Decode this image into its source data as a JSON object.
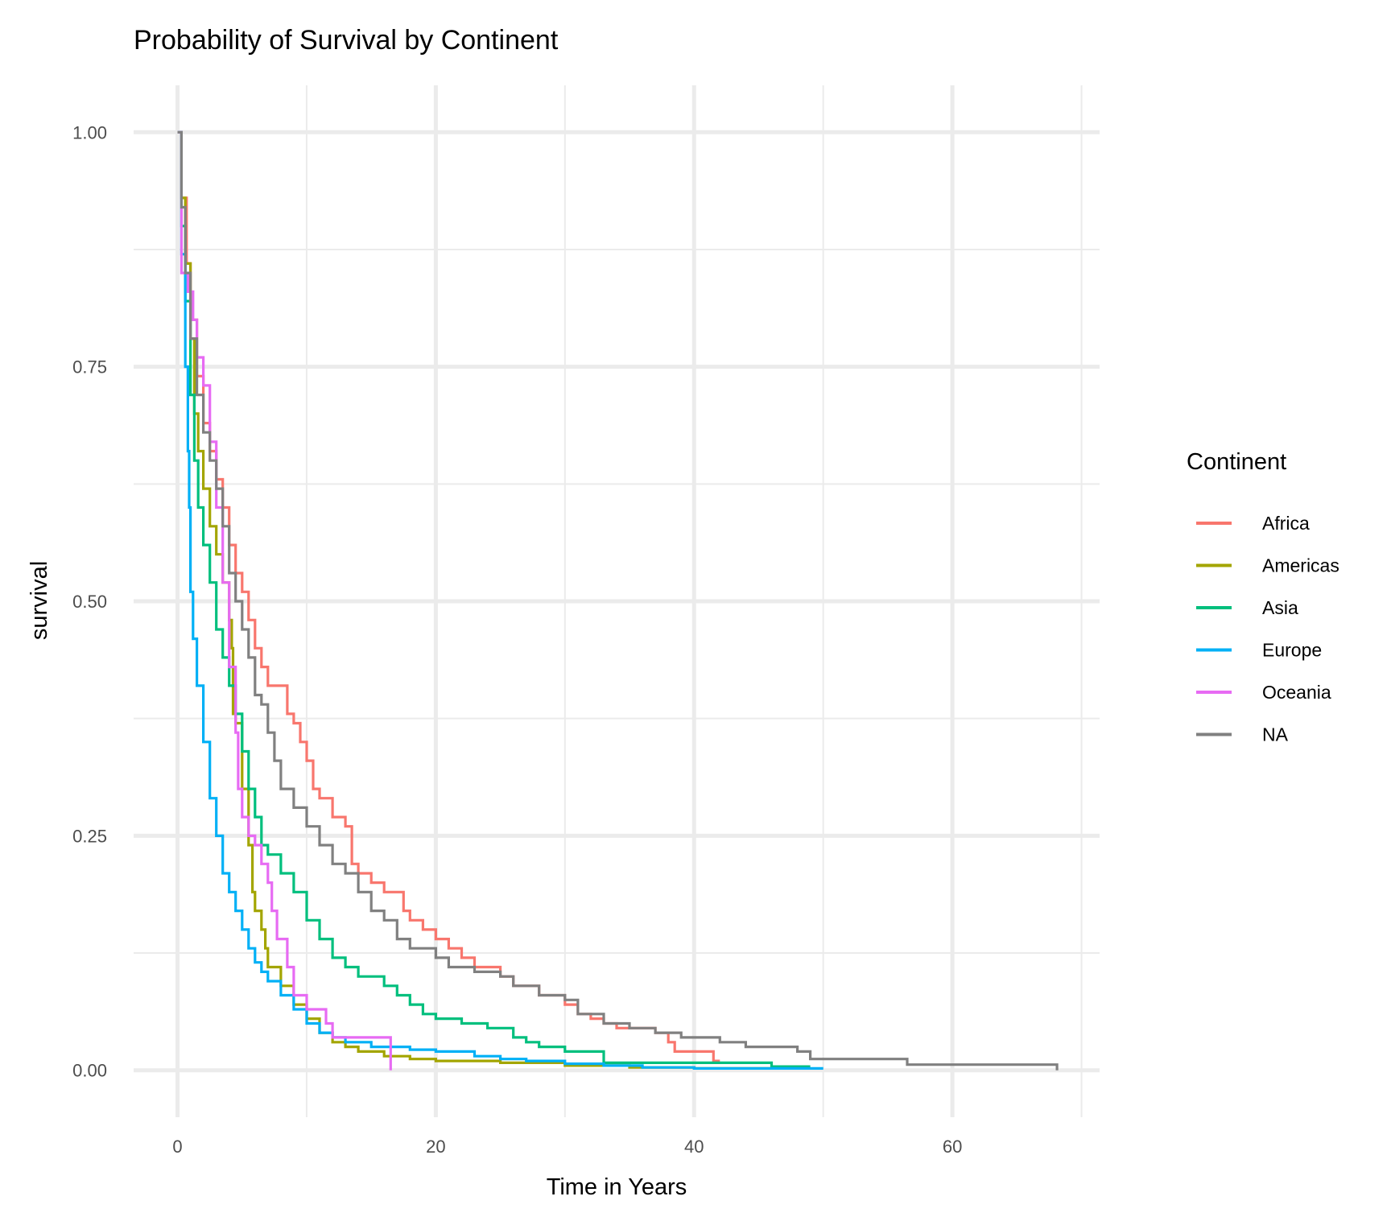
{
  "chart_data": {
    "type": "line",
    "title": "Probability of Survival by Continent",
    "xlabel": "Time in Years",
    "ylabel": "survival",
    "xlim": [
      -3.4,
      71.4
    ],
    "ylim": [
      -0.05,
      1.05
    ],
    "x_ticks": [
      0,
      20,
      40,
      60
    ],
    "x_tick_labels": [
      "0",
      "20",
      "40",
      "60"
    ],
    "x_minor_ticks": [
      10,
      30,
      50,
      70
    ],
    "y_ticks": [
      0,
      0.25,
      0.5,
      0.75,
      1.0
    ],
    "y_tick_labels": [
      "0.00",
      "0.25",
      "0.50",
      "0.75",
      "1.00"
    ],
    "y_minor_ticks": [
      0.125,
      0.375,
      0.625,
      0.875
    ],
    "grid": true,
    "legend": {
      "title": "Continent",
      "position": "right"
    },
    "series": [
      {
        "name": "Africa",
        "color": "#F8766D",
        "points": [
          [
            0,
            1.0
          ],
          [
            0.3,
            0.93
          ],
          [
            0.7,
            0.86
          ],
          [
            1.0,
            0.8
          ],
          [
            1.5,
            0.74
          ],
          [
            2.0,
            0.69
          ],
          [
            2.5,
            0.66
          ],
          [
            3.0,
            0.63
          ],
          [
            3.5,
            0.6
          ],
          [
            4.0,
            0.56
          ],
          [
            4.5,
            0.53
          ],
          [
            5.0,
            0.51
          ],
          [
            5.5,
            0.48
          ],
          [
            6.0,
            0.45
          ],
          [
            6.5,
            0.43
          ],
          [
            7.0,
            0.41
          ],
          [
            8.0,
            0.41
          ],
          [
            8.5,
            0.38
          ],
          [
            9.0,
            0.37
          ],
          [
            9.5,
            0.35
          ],
          [
            10.0,
            0.33
          ],
          [
            10.5,
            0.3
          ],
          [
            11.0,
            0.29
          ],
          [
            12.0,
            0.27
          ],
          [
            13.0,
            0.26
          ],
          [
            13.5,
            0.22
          ],
          [
            14.0,
            0.21
          ],
          [
            15.0,
            0.2
          ],
          [
            16.0,
            0.19
          ],
          [
            17.0,
            0.19
          ],
          [
            17.5,
            0.17
          ],
          [
            18.0,
            0.16
          ],
          [
            19.0,
            0.15
          ],
          [
            20.0,
            0.14
          ],
          [
            21.0,
            0.13
          ],
          [
            22.0,
            0.12
          ],
          [
            23.0,
            0.11
          ],
          [
            25.0,
            0.1
          ],
          [
            26.0,
            0.09
          ],
          [
            27.0,
            0.09
          ],
          [
            28.0,
            0.08
          ],
          [
            29.0,
            0.08
          ],
          [
            30.0,
            0.07
          ],
          [
            31.0,
            0.06
          ],
          [
            32.0,
            0.055
          ],
          [
            33.0,
            0.05
          ],
          [
            34.0,
            0.045
          ],
          [
            37.0,
            0.04
          ],
          [
            38.0,
            0.03
          ],
          [
            38.5,
            0.02
          ],
          [
            41.0,
            0.02
          ],
          [
            41.5,
            0.01
          ],
          [
            42.0,
            0.01
          ]
        ]
      },
      {
        "name": "Americas",
        "color": "#A3A500",
        "points": [
          [
            0,
            1.0
          ],
          [
            0.3,
            0.93
          ],
          [
            0.6,
            0.86
          ],
          [
            1.0,
            0.78
          ],
          [
            1.3,
            0.7
          ],
          [
            1.6,
            0.66
          ],
          [
            2.0,
            0.62
          ],
          [
            2.5,
            0.58
          ],
          [
            3.0,
            0.55
          ],
          [
            3.5,
            0.52
          ],
          [
            4.0,
            0.48
          ],
          [
            4.2,
            0.45
          ],
          [
            4.3,
            0.38
          ],
          [
            4.5,
            0.37
          ],
          [
            5.0,
            0.3
          ],
          [
            5.5,
            0.24
          ],
          [
            5.8,
            0.19
          ],
          [
            6.0,
            0.17
          ],
          [
            6.5,
            0.15
          ],
          [
            6.8,
            0.13
          ],
          [
            7.0,
            0.11
          ],
          [
            8.0,
            0.09
          ],
          [
            9.0,
            0.07
          ],
          [
            10.0,
            0.055
          ],
          [
            11.0,
            0.04
          ],
          [
            12.0,
            0.03
          ],
          [
            13.0,
            0.025
          ],
          [
            14.0,
            0.02
          ],
          [
            16.0,
            0.015
          ],
          [
            18.0,
            0.012
          ],
          [
            20.0,
            0.01
          ],
          [
            25.0,
            0.008
          ],
          [
            30.0,
            0.005
          ],
          [
            35.0,
            0.003
          ],
          [
            40.0,
            0.002
          ],
          [
            49.0,
            0.002
          ]
        ]
      },
      {
        "name": "Asia",
        "color": "#00BF7D",
        "points": [
          [
            0,
            1.0
          ],
          [
            0.3,
            0.9
          ],
          [
            0.6,
            0.82
          ],
          [
            1.0,
            0.72
          ],
          [
            1.3,
            0.65
          ],
          [
            1.6,
            0.6
          ],
          [
            2.0,
            0.56
          ],
          [
            2.5,
            0.52
          ],
          [
            3.0,
            0.47
          ],
          [
            3.5,
            0.44
          ],
          [
            4.0,
            0.41
          ],
          [
            4.5,
            0.38
          ],
          [
            5.0,
            0.34
          ],
          [
            5.5,
            0.3
          ],
          [
            6.0,
            0.27
          ],
          [
            6.5,
            0.24
          ],
          [
            7.0,
            0.23
          ],
          [
            8.0,
            0.21
          ],
          [
            9.0,
            0.19
          ],
          [
            10.0,
            0.16
          ],
          [
            11.0,
            0.14
          ],
          [
            12.0,
            0.12
          ],
          [
            13.0,
            0.11
          ],
          [
            14.0,
            0.1
          ],
          [
            15.0,
            0.1
          ],
          [
            16.0,
            0.09
          ],
          [
            17.0,
            0.08
          ],
          [
            18.0,
            0.07
          ],
          [
            19.0,
            0.06
          ],
          [
            20.0,
            0.055
          ],
          [
            22.0,
            0.05
          ],
          [
            24.0,
            0.045
          ],
          [
            26.0,
            0.035
          ],
          [
            27.0,
            0.03
          ],
          [
            28.0,
            0.025
          ],
          [
            30.0,
            0.02
          ],
          [
            32.0,
            0.02
          ],
          [
            33.0,
            0.008
          ],
          [
            38.0,
            0.008
          ],
          [
            45.0,
            0.008
          ],
          [
            46.0,
            0.004
          ],
          [
            49.0,
            0.004
          ]
        ]
      },
      {
        "name": "Europe",
        "color": "#00B0F6",
        "points": [
          [
            0,
            1.0
          ],
          [
            0.3,
            0.87
          ],
          [
            0.6,
            0.75
          ],
          [
            0.8,
            0.66
          ],
          [
            0.9,
            0.6
          ],
          [
            1.0,
            0.51
          ],
          [
            1.2,
            0.46
          ],
          [
            1.5,
            0.41
          ],
          [
            2.0,
            0.35
          ],
          [
            2.5,
            0.29
          ],
          [
            3.0,
            0.25
          ],
          [
            3.5,
            0.21
          ],
          [
            4.0,
            0.19
          ],
          [
            4.5,
            0.17
          ],
          [
            5.0,
            0.15
          ],
          [
            5.5,
            0.13
          ],
          [
            6.0,
            0.115
          ],
          [
            6.5,
            0.105
          ],
          [
            7.0,
            0.095
          ],
          [
            8.0,
            0.08
          ],
          [
            9.0,
            0.065
          ],
          [
            10.0,
            0.05
          ],
          [
            11.0,
            0.04
          ],
          [
            12.0,
            0.035
          ],
          [
            13.0,
            0.03
          ],
          [
            15.0,
            0.025
          ],
          [
            18.0,
            0.022
          ],
          [
            20.0,
            0.02
          ],
          [
            23.0,
            0.015
          ],
          [
            25.0,
            0.012
          ],
          [
            27.0,
            0.01
          ],
          [
            30.0,
            0.007
          ],
          [
            33.0,
            0.005
          ],
          [
            36.0,
            0.003
          ],
          [
            40.0,
            0.002
          ],
          [
            50.0,
            0.002
          ]
        ]
      },
      {
        "name": "Oceania",
        "color": "#E76BF3",
        "points": [
          [
            0,
            1.0
          ],
          [
            0.3,
            0.85
          ],
          [
            0.8,
            0.83
          ],
          [
            1.2,
            0.8
          ],
          [
            1.5,
            0.76
          ],
          [
            2.0,
            0.73
          ],
          [
            2.5,
            0.67
          ],
          [
            3.0,
            0.6
          ],
          [
            3.5,
            0.52
          ],
          [
            4.0,
            0.43
          ],
          [
            4.5,
            0.36
          ],
          [
            4.7,
            0.3
          ],
          [
            5.0,
            0.27
          ],
          [
            5.5,
            0.25
          ],
          [
            6.0,
            0.24
          ],
          [
            6.5,
            0.22
          ],
          [
            7.0,
            0.2
          ],
          [
            7.3,
            0.17
          ],
          [
            7.7,
            0.14
          ],
          [
            8.0,
            0.14
          ],
          [
            8.5,
            0.11
          ],
          [
            9.0,
            0.08
          ],
          [
            10.0,
            0.065
          ],
          [
            11.0,
            0.065
          ],
          [
            11.5,
            0.05
          ],
          [
            12.0,
            0.035
          ],
          [
            14.0,
            0.035
          ],
          [
            16.0,
            0.035
          ],
          [
            16.5,
            0.0
          ]
        ]
      },
      {
        "name": "NA",
        "color": "#808080",
        "points": [
          [
            0,
            1.0
          ],
          [
            0.3,
            0.92
          ],
          [
            0.6,
            0.85
          ],
          [
            1.0,
            0.78
          ],
          [
            1.5,
            0.72
          ],
          [
            2.0,
            0.68
          ],
          [
            2.5,
            0.65
          ],
          [
            3.0,
            0.62
          ],
          [
            3.5,
            0.58
          ],
          [
            4.0,
            0.53
          ],
          [
            4.5,
            0.5
          ],
          [
            5.0,
            0.47
          ],
          [
            5.5,
            0.44
          ],
          [
            6.0,
            0.4
          ],
          [
            6.5,
            0.39
          ],
          [
            7.0,
            0.36
          ],
          [
            7.5,
            0.33
          ],
          [
            8.0,
            0.3
          ],
          [
            9.0,
            0.28
          ],
          [
            10.0,
            0.26
          ],
          [
            11.0,
            0.24
          ],
          [
            12.0,
            0.22
          ],
          [
            13.0,
            0.21
          ],
          [
            14.0,
            0.19
          ],
          [
            15.0,
            0.17
          ],
          [
            16.0,
            0.16
          ],
          [
            17.0,
            0.14
          ],
          [
            18.0,
            0.13
          ],
          [
            20.0,
            0.12
          ],
          [
            21.0,
            0.11
          ],
          [
            23.0,
            0.105
          ],
          [
            25.0,
            0.1
          ],
          [
            26.0,
            0.09
          ],
          [
            28.0,
            0.08
          ],
          [
            30.0,
            0.075
          ],
          [
            31.0,
            0.06
          ],
          [
            33.0,
            0.05
          ],
          [
            35.0,
            0.045
          ],
          [
            37.0,
            0.04
          ],
          [
            39.0,
            0.035
          ],
          [
            42.0,
            0.03
          ],
          [
            44.0,
            0.025
          ],
          [
            48.0,
            0.02
          ],
          [
            49.0,
            0.012
          ],
          [
            56.0,
            0.012
          ],
          [
            56.5,
            0.006
          ],
          [
            68.0,
            0.006
          ],
          [
            68.1,
            0.0
          ]
        ]
      }
    ]
  }
}
